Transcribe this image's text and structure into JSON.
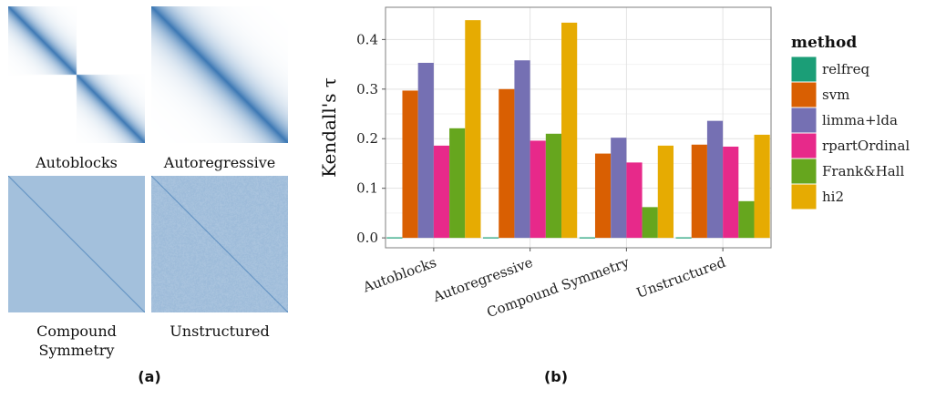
{
  "panel_a": {
    "label": "(a)",
    "matrices": [
      {
        "name": "Autoblocks",
        "kind": "autoblocks"
      },
      {
        "name": "Autoregressive",
        "kind": "autoregressive"
      },
      {
        "name": "Compound\nSymmetry",
        "kind": "compound"
      },
      {
        "name": "Unstructured",
        "kind": "unstructured"
      }
    ]
  },
  "panel_b": {
    "label": "(b)"
  },
  "colors": {
    "relfreq": "#1b9e77",
    "svm": "#d95f02",
    "limma+lda": "#7570b3",
    "rpartOrdinal": "#e7298a",
    "Frank&Hall": "#66a61e",
    "hi2": "#e6ab02",
    "heat": "#3c78b4",
    "heat_uniform": "#a3bcd9"
  },
  "chart_data": {
    "type": "bar",
    "categories": [
      "Autoblocks",
      "Autoregressive",
      "Compound Symmetry",
      "Unstructured"
    ],
    "series": [
      {
        "name": "relfreq",
        "values": [
          0.0,
          0.0,
          0.0,
          0.0
        ]
      },
      {
        "name": "svm",
        "values": [
          0.297,
          0.3,
          0.17,
          0.188
        ]
      },
      {
        "name": "limma+lda",
        "values": [
          0.353,
          0.358,
          0.202,
          0.236
        ]
      },
      {
        "name": "rpartOrdinal",
        "values": [
          0.186,
          0.196,
          0.152,
          0.184
        ]
      },
      {
        "name": "Frank&Hall",
        "values": [
          0.221,
          0.21,
          0.062,
          0.074
        ]
      },
      {
        "name": "hi2",
        "values": [
          0.439,
          0.434,
          0.186,
          0.208
        ]
      }
    ],
    "ylabel": "Kendall's τ",
    "xlabel": "",
    "ylim": [
      -0.02,
      0.465
    ],
    "yticks": [
      0.0,
      0.1,
      0.2,
      0.3,
      0.4
    ],
    "ytick_labels": [
      "0.0",
      "0.1",
      "0.2",
      "0.3",
      "0.4"
    ],
    "legend_title": "method",
    "legend_position": "right",
    "grid": true
  }
}
